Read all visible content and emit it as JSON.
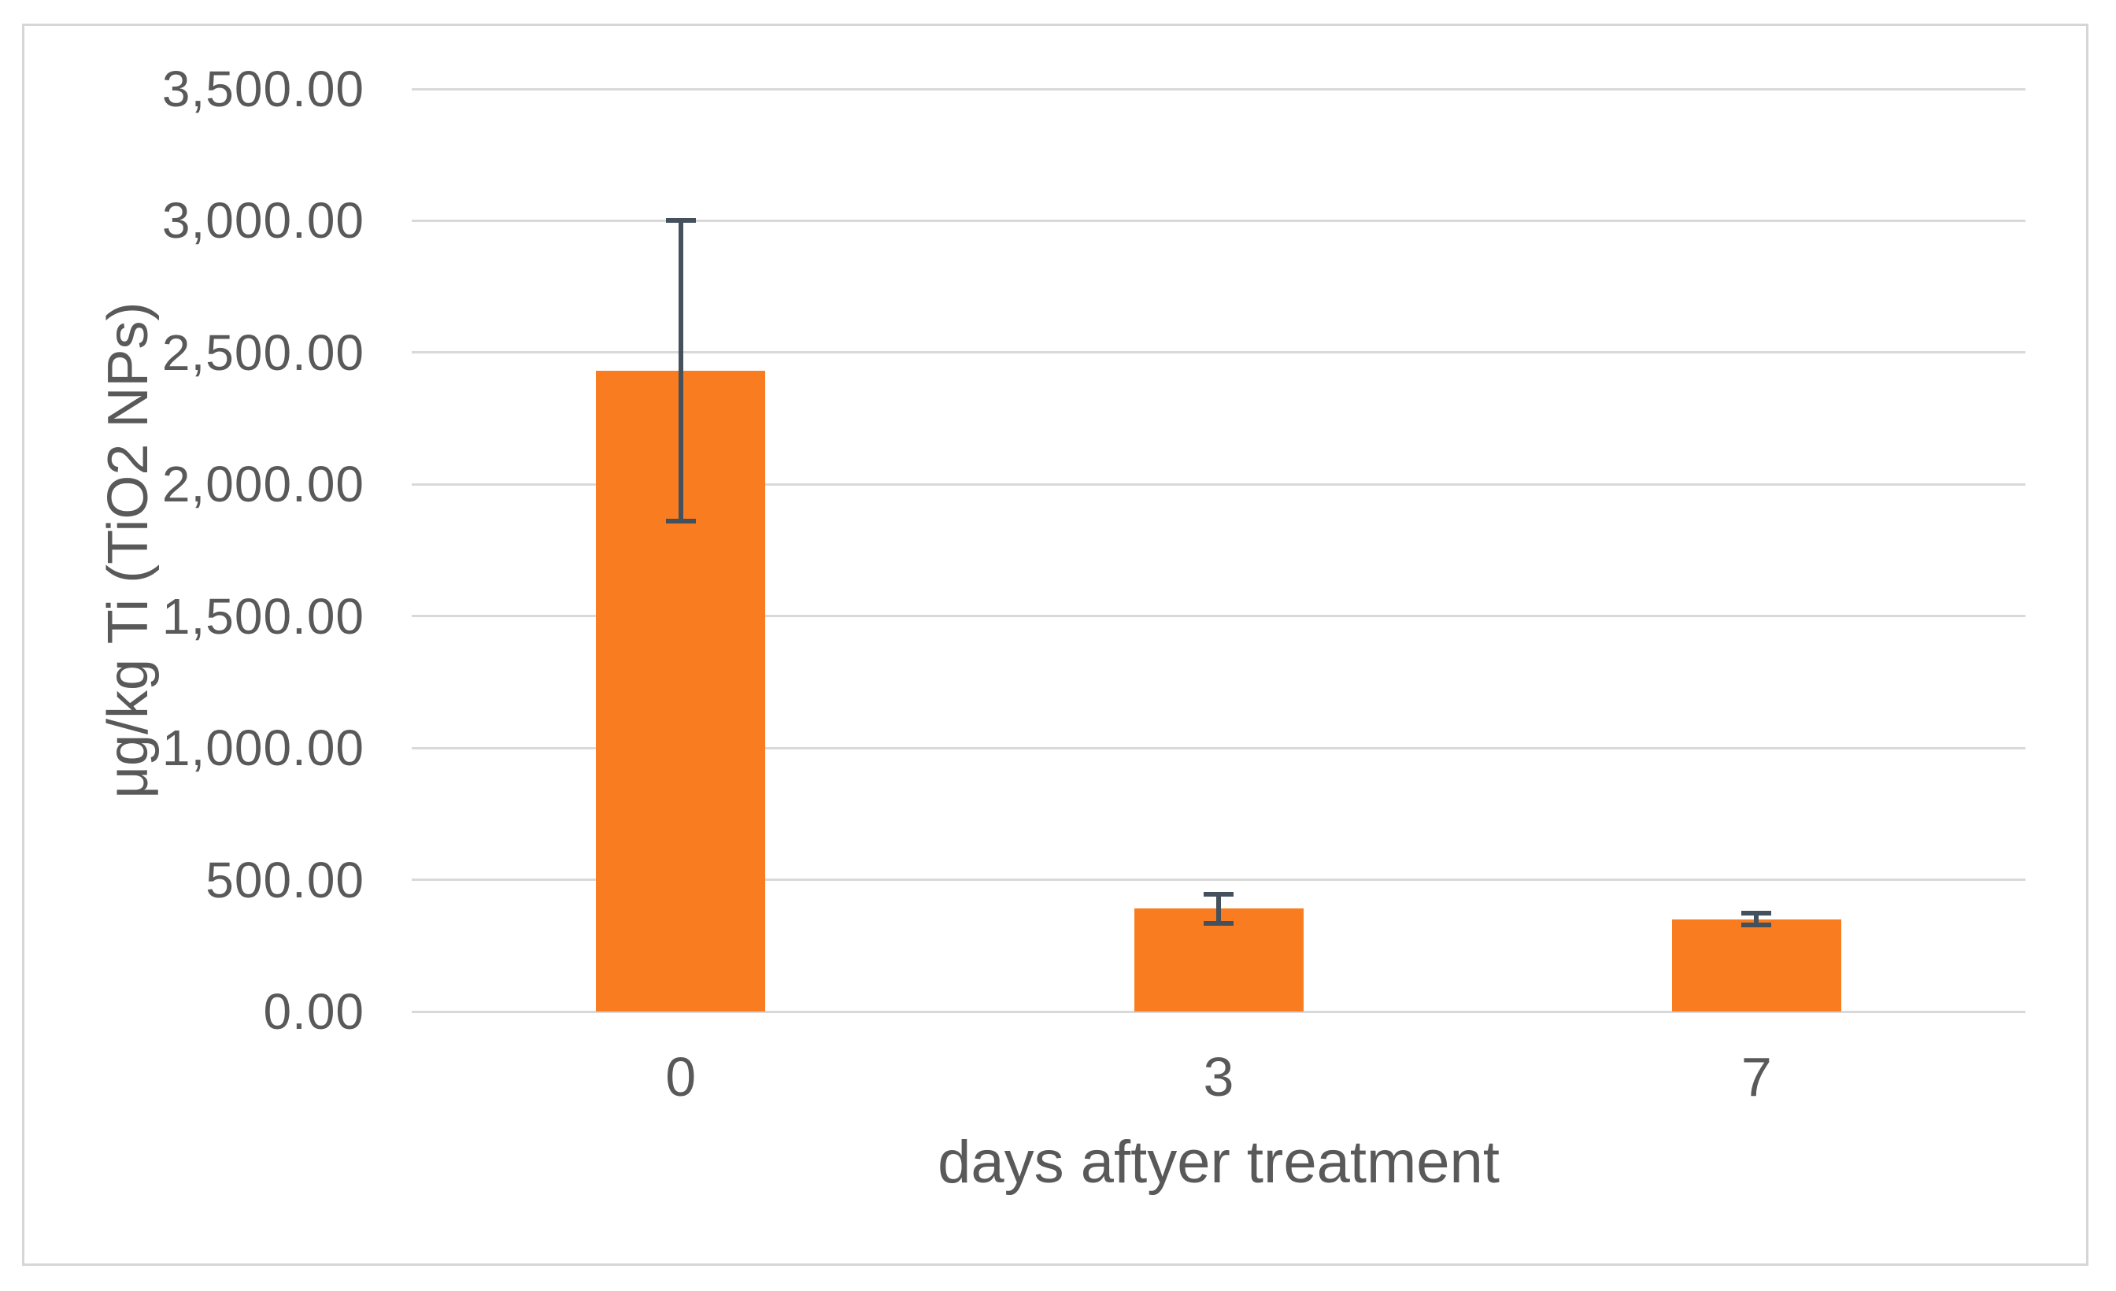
{
  "chart_data": {
    "type": "bar",
    "title": "",
    "xlabel": "days aftyer treatment",
    "ylabel": "μg/kg Ti (TiO2 NPs)",
    "categories": [
      "0",
      "3",
      "7"
    ],
    "values": [
      2430,
      390,
      350
    ],
    "error_bars": {
      "upper": [
        570,
        55,
        22
      ],
      "lower": [
        570,
        55,
        22
      ]
    },
    "ylim": [
      0,
      3500
    ],
    "ytick_step": 500,
    "ytick_labels": [
      "0.00",
      "500.00",
      "1,000.00",
      "1,500.00",
      "2,000.00",
      "2,500.00",
      "3,000.00",
      "3,500.00"
    ],
    "grid": true,
    "legend_position": "none",
    "colors": {
      "bar": "#f97d20",
      "error_bar": "#44505c",
      "gridline": "#d9d9d9",
      "text": "#595959",
      "frame_border": "#d6d6d6",
      "background": "#ffffff"
    }
  }
}
